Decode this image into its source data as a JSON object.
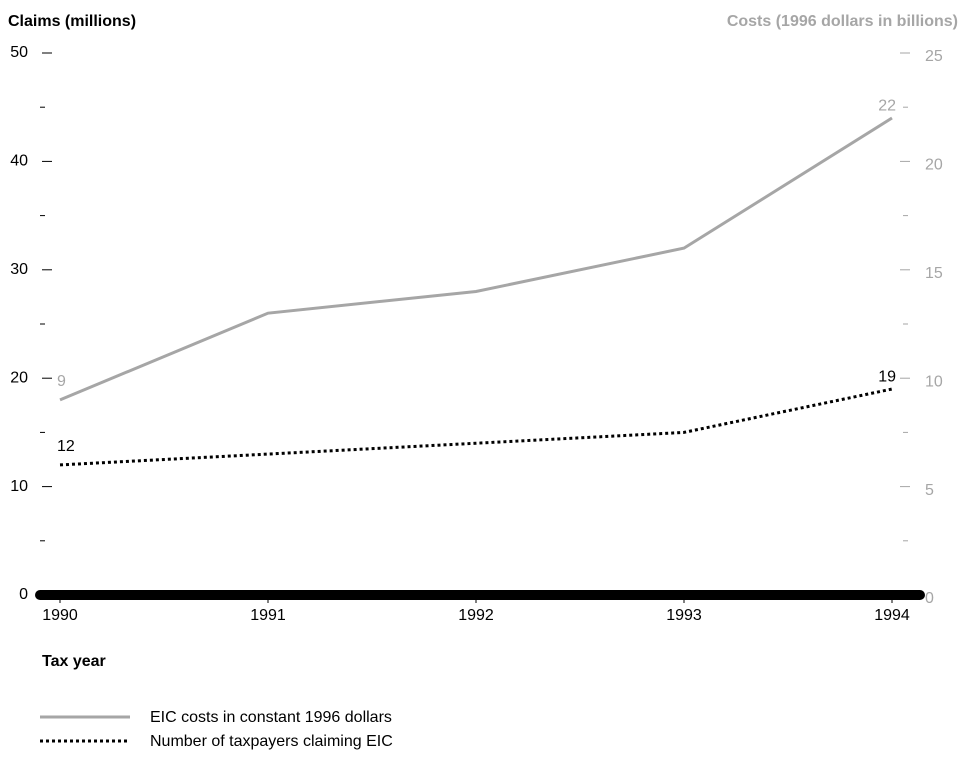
{
  "chart_data": {
    "type": "line",
    "y_axis_label": "Claims (millions)",
    "y2_axis_label": "Costs (1996 dollars in billions)",
    "x_axis_label": "Tax year",
    "categories": [
      "1990",
      "1991",
      "1992",
      "1993",
      "1994"
    ],
    "ylim": [
      0,
      50
    ],
    "yticks": [
      0,
      10,
      20,
      30,
      40,
      50
    ],
    "yminorticks": [
      5,
      15,
      25,
      35,
      45
    ],
    "y2lim": [
      0,
      25
    ],
    "y2ticks": [
      0,
      5,
      10,
      15,
      20,
      25
    ],
    "y2minorticks": [
      2.5,
      7.5,
      12.5,
      17.5,
      22.5
    ],
    "y2_color": "#a6a6a6",
    "data_labels": "ends",
    "legend": "bottom-left",
    "series": [
      {
        "name": "EIC costs in constant 1996 dollars",
        "color": "#a6a6a6",
        "axis": "y2",
        "line_style": "solid",
        "values": [
          9,
          13,
          14,
          16,
          22
        ]
      },
      {
        "name": "Number of taxpayers claiming EIC",
        "color": "#000000",
        "axis": "y",
        "line_style": "dotted",
        "values": [
          12,
          13,
          14,
          15,
          19
        ]
      }
    ]
  }
}
